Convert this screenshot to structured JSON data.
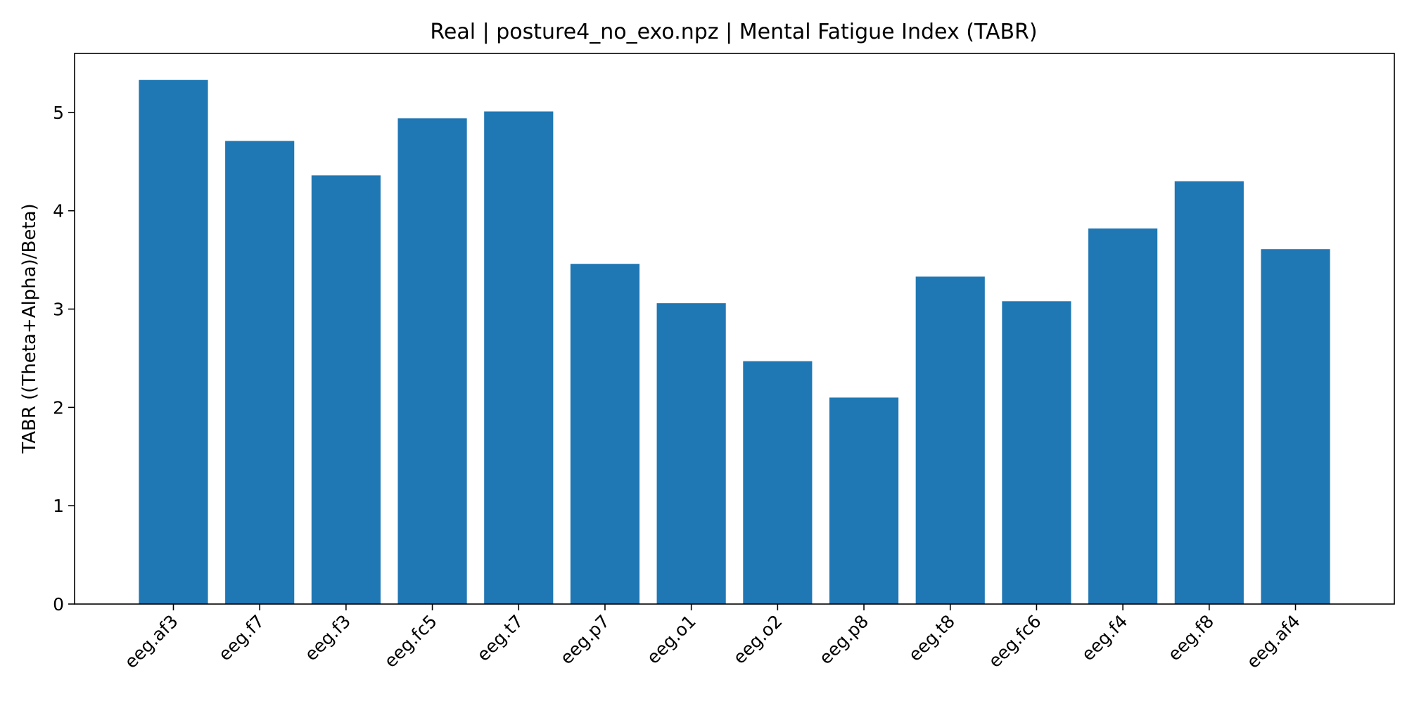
{
  "chart_data": {
    "type": "bar",
    "title": "Real | posture4_no_exo.npz | Mental Fatigue Index (TABR)",
    "xlabel": "",
    "ylabel": "TABR ((Theta+Alpha)/Beta)",
    "categories": [
      "eeg.af3",
      "eeg.f7",
      "eeg.f3",
      "eeg.fc5",
      "eeg.t7",
      "eeg.p7",
      "eeg.o1",
      "eeg.o2",
      "eeg.p8",
      "eeg.t8",
      "eeg.fc6",
      "eeg.f4",
      "eeg.f8",
      "eeg.af4"
    ],
    "values": [
      5.33,
      4.71,
      4.36,
      4.94,
      5.01,
      3.46,
      3.06,
      2.47,
      2.1,
      3.33,
      3.08,
      3.82,
      4.3,
      3.61
    ],
    "ylim": [
      0,
      5.6
    ],
    "yticks": [
      "0",
      "1",
      "2",
      "3",
      "4",
      "5"
    ],
    "grid": false,
    "colors": {
      "bar": "#1f77b4",
      "axis": "#000000",
      "background": "#ffffff"
    }
  }
}
